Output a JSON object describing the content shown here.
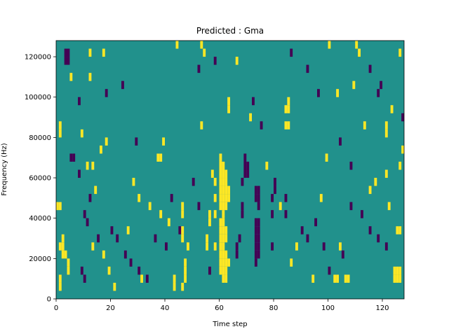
{
  "chart_data": {
    "type": "heatmap",
    "title": "Predicted : Gma",
    "xlabel": "Time step",
    "ylabel": "Frequency (Hz)",
    "xlim": [
      0,
      128
    ],
    "ylim": [
      0,
      128000
    ],
    "xticks": [
      0,
      20,
      40,
      60,
      80,
      100,
      120
    ],
    "yticks": [
      0,
      20000,
      40000,
      60000,
      80000,
      100000,
      120000
    ],
    "grid": false,
    "colorscale": "viridis",
    "colors": {
      "low": "#440154",
      "mid": "#21918c",
      "high": "#fde725"
    },
    "background_value": 0,
    "cell_width_steps": 1,
    "cell_height_hz": 4000,
    "cells": [
      {
        "x": 60,
        "y": 12000,
        "v": 1
      },
      {
        "x": 60,
        "y": 16000,
        "v": 1
      },
      {
        "x": 60,
        "y": 20000,
        "v": 1
      },
      {
        "x": 60,
        "y": 24000,
        "v": 1
      },
      {
        "x": 60,
        "y": 28000,
        "v": 1
      },
      {
        "x": 60,
        "y": 32000,
        "v": 1
      },
      {
        "x": 60,
        "y": 36000,
        "v": 1
      },
      {
        "x": 60,
        "y": 44000,
        "v": 1
      },
      {
        "x": 60,
        "y": 48000,
        "v": 1
      },
      {
        "x": 60,
        "y": 52000,
        "v": 1
      },
      {
        "x": 60,
        "y": 56000,
        "v": 1
      },
      {
        "x": 60,
        "y": 60000,
        "v": 1
      },
      {
        "x": 60,
        "y": 64000,
        "v": 1
      },
      {
        "x": 60,
        "y": 68000,
        "v": 1
      },
      {
        "x": 61,
        "y": 8000,
        "v": 1
      },
      {
        "x": 61,
        "y": 12000,
        "v": 1
      },
      {
        "x": 61,
        "y": 16000,
        "v": 1
      },
      {
        "x": 61,
        "y": 20000,
        "v": 1
      },
      {
        "x": 61,
        "y": 24000,
        "v": 1
      },
      {
        "x": 61,
        "y": 28000,
        "v": 1
      },
      {
        "x": 61,
        "y": 32000,
        "v": 1
      },
      {
        "x": 61,
        "y": 36000,
        "v": 1
      },
      {
        "x": 61,
        "y": 40000,
        "v": 1
      },
      {
        "x": 61,
        "y": 44000,
        "v": 1
      },
      {
        "x": 61,
        "y": 48000,
        "v": 1
      },
      {
        "x": 61,
        "y": 52000,
        "v": 1
      },
      {
        "x": 61,
        "y": 56000,
        "v": 1
      },
      {
        "x": 61,
        "y": 60000,
        "v": 1
      },
      {
        "x": 61,
        "y": 64000,
        "v": 1
      },
      {
        "x": 62,
        "y": 8000,
        "v": 1
      },
      {
        "x": 62,
        "y": 12000,
        "v": 1
      },
      {
        "x": 62,
        "y": 16000,
        "v": 1
      },
      {
        "x": 62,
        "y": 20000,
        "v": 1
      },
      {
        "x": 62,
        "y": 28000,
        "v": 1
      },
      {
        "x": 62,
        "y": 32000,
        "v": 1
      },
      {
        "x": 62,
        "y": 44000,
        "v": 1
      },
      {
        "x": 62,
        "y": 48000,
        "v": 1
      },
      {
        "x": 62,
        "y": 52000,
        "v": 1
      },
      {
        "x": 62,
        "y": 56000,
        "v": 1
      },
      {
        "x": 62,
        "y": 60000,
        "v": 1
      },
      {
        "x": 58,
        "y": 48000,
        "v": 1
      },
      {
        "x": 58,
        "y": 56000,
        "v": 1
      },
      {
        "x": 58,
        "y": 40000,
        "v": 1
      },
      {
        "x": 58,
        "y": 24000,
        "v": 1
      },
      {
        "x": 57,
        "y": 60000,
        "v": 1
      },
      {
        "x": 63,
        "y": 48000,
        "v": 1
      },
      {
        "x": 63,
        "y": 52000,
        "v": 1
      },
      {
        "x": 63,
        "y": 16000,
        "v": 1
      },
      {
        "x": 69,
        "y": 60000,
        "v": -1
      },
      {
        "x": 69,
        "y": 64000,
        "v": -1
      },
      {
        "x": 70,
        "y": 60000,
        "v": -1
      },
      {
        "x": 70,
        "y": 64000,
        "v": -1
      },
      {
        "x": 69,
        "y": 68000,
        "v": -1
      },
      {
        "x": 68,
        "y": 56000,
        "v": -1
      },
      {
        "x": 68,
        "y": 44000,
        "v": -1
      },
      {
        "x": 68,
        "y": 40000,
        "v": -1
      },
      {
        "x": 67,
        "y": 28000,
        "v": -1
      },
      {
        "x": 66,
        "y": 24000,
        "v": -1
      },
      {
        "x": 66,
        "y": 20000,
        "v": -1
      },
      {
        "x": 73,
        "y": 52000,
        "v": -1
      },
      {
        "x": 73,
        "y": 48000,
        "v": -1
      },
      {
        "x": 73,
        "y": 36000,
        "v": -1
      },
      {
        "x": 73,
        "y": 32000,
        "v": -1
      },
      {
        "x": 73,
        "y": 28000,
        "v": -1
      },
      {
        "x": 73,
        "y": 24000,
        "v": -1
      },
      {
        "x": 73,
        "y": 20000,
        "v": -1
      },
      {
        "x": 73,
        "y": 16000,
        "v": -1
      },
      {
        "x": 74,
        "y": 52000,
        "v": -1
      },
      {
        "x": 74,
        "y": 48000,
        "v": -1
      },
      {
        "x": 74,
        "y": 44000,
        "v": -1
      },
      {
        "x": 74,
        "y": 36000,
        "v": -1
      },
      {
        "x": 74,
        "y": 32000,
        "v": -1
      },
      {
        "x": 74,
        "y": 28000,
        "v": -1
      },
      {
        "x": 74,
        "y": 24000,
        "v": -1
      },
      {
        "x": 74,
        "y": 20000,
        "v": -1
      },
      {
        "x": 79,
        "y": 48000,
        "v": -1
      },
      {
        "x": 80,
        "y": 52000,
        "v": -1
      },
      {
        "x": 80,
        "y": 56000,
        "v": -1
      },
      {
        "x": 79,
        "y": 40000,
        "v": -1
      },
      {
        "x": 79,
        "y": 24000,
        "v": -1
      },
      {
        "x": 84,
        "y": 40000,
        "v": -1
      },
      {
        "x": 84,
        "y": 48000,
        "v": -1
      },
      {
        "x": 72,
        "y": 96000,
        "v": -1
      },
      {
        "x": 75,
        "y": 84000,
        "v": -1
      },
      {
        "x": 3,
        "y": 120000,
        "v": -1
      },
      {
        "x": 4,
        "y": 120000,
        "v": -1
      },
      {
        "x": 4,
        "y": 116000,
        "v": -1
      },
      {
        "x": 3,
        "y": 116000,
        "v": -1
      },
      {
        "x": 9,
        "y": 12000,
        "v": -1
      },
      {
        "x": 10,
        "y": 8000,
        "v": -1
      },
      {
        "x": 118,
        "y": 100000,
        "v": -1
      },
      {
        "x": 119,
        "y": 104000,
        "v": -1
      },
      {
        "x": 127,
        "y": 88000,
        "v": -1
      },
      {
        "x": 5,
        "y": 68000,
        "v": -1
      },
      {
        "x": 6,
        "y": 68000,
        "v": -1
      },
      {
        "x": 45,
        "y": 32000,
        "v": -1
      },
      {
        "x": 1,
        "y": 24000,
        "v": 1
      },
      {
        "x": 2,
        "y": 28000,
        "v": 1
      },
      {
        "x": 2,
        "y": 24000,
        "v": 1
      },
      {
        "x": 2,
        "y": 20000,
        "v": 1
      },
      {
        "x": 3,
        "y": 20000,
        "v": 1
      },
      {
        "x": 4,
        "y": 16000,
        "v": 1
      },
      {
        "x": 4,
        "y": 12000,
        "v": 1
      },
      {
        "x": 1,
        "y": 8000,
        "v": 1
      },
      {
        "x": 1,
        "y": 4000,
        "v": 1
      },
      {
        "x": 1,
        "y": 80000,
        "v": 1
      },
      {
        "x": 1,
        "y": 84000,
        "v": 1
      },
      {
        "x": 1,
        "y": 44000,
        "v": 1
      },
      {
        "x": 0,
        "y": 44000,
        "v": 1
      },
      {
        "x": 5,
        "y": 108000,
        "v": 1
      },
      {
        "x": 46,
        "y": 28000,
        "v": 1
      },
      {
        "x": 46,
        "y": 32000,
        "v": 1
      },
      {
        "x": 46,
        "y": 40000,
        "v": 1
      },
      {
        "x": 46,
        "y": 44000,
        "v": 1
      },
      {
        "x": 47,
        "y": 16000,
        "v": 1
      },
      {
        "x": 47,
        "y": 12000,
        "v": 1
      },
      {
        "x": 47,
        "y": 8000,
        "v": 1
      },
      {
        "x": 46,
        "y": 4000,
        "v": 1
      },
      {
        "x": 84,
        "y": 92000,
        "v": 1
      },
      {
        "x": 85,
        "y": 92000,
        "v": 1
      },
      {
        "x": 85,
        "y": 96000,
        "v": 1
      },
      {
        "x": 84,
        "y": 84000,
        "v": 1
      },
      {
        "x": 85,
        "y": 84000,
        "v": 1
      },
      {
        "x": 102,
        "y": 8000,
        "v": 1
      },
      {
        "x": 103,
        "y": 8000,
        "v": 1
      },
      {
        "x": 106,
        "y": 8000,
        "v": 1
      },
      {
        "x": 107,
        "y": 8000,
        "v": 1
      },
      {
        "x": 124,
        "y": 8000,
        "v": 1
      },
      {
        "x": 125,
        "y": 8000,
        "v": 1
      },
      {
        "x": 126,
        "y": 8000,
        "v": 1
      },
      {
        "x": 124,
        "y": 12000,
        "v": 1
      },
      {
        "x": 125,
        "y": 12000,
        "v": 1
      },
      {
        "x": 126,
        "y": 12000,
        "v": 1
      },
      {
        "x": 125,
        "y": 32000,
        "v": 1
      },
      {
        "x": 126,
        "y": 32000,
        "v": 1
      },
      {
        "x": 121,
        "y": 84000,
        "v": 1
      },
      {
        "x": 121,
        "y": 80000,
        "v": 1
      },
      {
        "x": 126,
        "y": 64000,
        "v": 1
      },
      {
        "x": 126,
        "y": 120000,
        "v": 1
      },
      {
        "x": 121,
        "y": 60000,
        "v": 1
      },
      {
        "x": 37,
        "y": 68000,
        "v": 1
      },
      {
        "x": 38,
        "y": 68000,
        "v": 1
      },
      {
        "x": 43,
        "y": 8000,
        "v": 1
      },
      {
        "x": 43,
        "y": 4000,
        "v": 1
      },
      {
        "x": 55,
        "y": 24000,
        "v": 1
      },
      {
        "x": 55,
        "y": 28000,
        "v": 1
      },
      {
        "x": 56,
        "y": 36000,
        "v": 1
      },
      {
        "x": 56,
        "y": 40000,
        "v": 1
      },
      {
        "x": 63,
        "y": 96000,
        "v": 1
      },
      {
        "x": 63,
        "y": 92000,
        "v": 1
      },
      {
        "x": 48,
        "y": 24000,
        "v": 1
      },
      {
        "x": 30,
        "y": 48000,
        "v": 1
      },
      {
        "x": 31,
        "y": 8000,
        "v": 1
      },
      {
        "x": 14,
        "y": 52000,
        "v": 1
      },
      {
        "x": 13,
        "y": 64000,
        "v": 1
      },
      {
        "x": 16,
        "y": 72000,
        "v": 1
      },
      {
        "x": 18,
        "y": 76000,
        "v": 1
      },
      {
        "x": 12,
        "y": 120000,
        "v": 1
      },
      {
        "x": 17,
        "y": 120000,
        "v": 1
      },
      {
        "x": 12,
        "y": 108000,
        "v": 1
      },
      {
        "x": 53,
        "y": 84000,
        "v": 1
      },
      {
        "x": 100,
        "y": 124000,
        "v": 1
      },
      {
        "x": 110,
        "y": 124000,
        "v": 1
      },
      {
        "x": 111,
        "y": 120000,
        "v": 1
      },
      {
        "x": 38,
        "y": 40000,
        "v": 1
      },
      {
        "x": 41,
        "y": 36000,
        "v": 1
      },
      {
        "x": 88,
        "y": 24000,
        "v": 1
      },
      {
        "x": 104,
        "y": 24000,
        "v": 1
      },
      {
        "x": 97,
        "y": 48000,
        "v": 1
      },
      {
        "x": 115,
        "y": 52000,
        "v": 1
      },
      {
        "x": 122,
        "y": 44000,
        "v": 1
      },
      {
        "x": 10,
        "y": 40000,
        "v": -1
      },
      {
        "x": 11,
        "y": 36000,
        "v": -1
      },
      {
        "x": 15,
        "y": 28000,
        "v": -1
      },
      {
        "x": 20,
        "y": 32000,
        "v": -1
      },
      {
        "x": 22,
        "y": 28000,
        "v": -1
      },
      {
        "x": 25,
        "y": 20000,
        "v": -1
      },
      {
        "x": 27,
        "y": 16000,
        "v": -1
      },
      {
        "x": 30,
        "y": 12000,
        "v": -1
      },
      {
        "x": 33,
        "y": 8000,
        "v": -1
      },
      {
        "x": 36,
        "y": 28000,
        "v": -1
      },
      {
        "x": 40,
        "y": 24000,
        "v": -1
      },
      {
        "x": 42,
        "y": 48000,
        "v": -1
      },
      {
        "x": 50,
        "y": 56000,
        "v": -1
      },
      {
        "x": 52,
        "y": 44000,
        "v": -1
      },
      {
        "x": 56,
        "y": 12000,
        "v": -1
      },
      {
        "x": 90,
        "y": 32000,
        "v": -1
      },
      {
        "x": 92,
        "y": 28000,
        "v": -1
      },
      {
        "x": 95,
        "y": 36000,
        "v": -1
      },
      {
        "x": 98,
        "y": 24000,
        "v": -1
      },
      {
        "x": 100,
        "y": 12000,
        "v": -1
      },
      {
        "x": 105,
        "y": 20000,
        "v": -1
      },
      {
        "x": 108,
        "y": 44000,
        "v": -1
      },
      {
        "x": 112,
        "y": 40000,
        "v": -1
      },
      {
        "x": 115,
        "y": 32000,
        "v": -1
      },
      {
        "x": 118,
        "y": 28000,
        "v": -1
      },
      {
        "x": 121,
        "y": 24000,
        "v": -1
      },
      {
        "x": 86,
        "y": 120000,
        "v": -1
      },
      {
        "x": 92,
        "y": 112000,
        "v": -1
      },
      {
        "x": 96,
        "y": 100000,
        "v": -1
      },
      {
        "x": 104,
        "y": 76000,
        "v": -1
      },
      {
        "x": 108,
        "y": 64000,
        "v": -1
      },
      {
        "x": 115,
        "y": 112000,
        "v": -1
      },
      {
        "x": 29,
        "y": 76000,
        "v": -1
      },
      {
        "x": 24,
        "y": 104000,
        "v": -1
      },
      {
        "x": 18,
        "y": 100000,
        "v": -1
      },
      {
        "x": 8,
        "y": 96000,
        "v": -1
      },
      {
        "x": 8,
        "y": 60000,
        "v": -1
      },
      {
        "x": 12,
        "y": 48000,
        "v": -1
      },
      {
        "x": 52,
        "y": 112000,
        "v": -1
      },
      {
        "x": 58,
        "y": 116000,
        "v": -1
      },
      {
        "x": 9,
        "y": 80000,
        "v": 1
      },
      {
        "x": 11,
        "y": 64000,
        "v": 1
      },
      {
        "x": 13,
        "y": 24000,
        "v": 1
      },
      {
        "x": 17,
        "y": 20000,
        "v": 1
      },
      {
        "x": 19,
        "y": 12000,
        "v": 1
      },
      {
        "x": 21,
        "y": 4000,
        "v": 1
      },
      {
        "x": 26,
        "y": 32000,
        "v": 1
      },
      {
        "x": 28,
        "y": 56000,
        "v": 1
      },
      {
        "x": 34,
        "y": 44000,
        "v": 1
      },
      {
        "x": 39,
        "y": 76000,
        "v": 1
      },
      {
        "x": 44,
        "y": 124000,
        "v": 1
      },
      {
        "x": 53,
        "y": 124000,
        "v": 1
      },
      {
        "x": 54,
        "y": 120000,
        "v": 1
      },
      {
        "x": 66,
        "y": 116000,
        "v": 1
      },
      {
        "x": 71,
        "y": 88000,
        "v": 1
      },
      {
        "x": 77,
        "y": 64000,
        "v": 1
      },
      {
        "x": 82,
        "y": 44000,
        "v": 1
      },
      {
        "x": 86,
        "y": 16000,
        "v": 1
      },
      {
        "x": 94,
        "y": 8000,
        "v": 1
      },
      {
        "x": 99,
        "y": 68000,
        "v": 1
      },
      {
        "x": 103,
        "y": 100000,
        "v": 1
      },
      {
        "x": 109,
        "y": 104000,
        "v": 1
      },
      {
        "x": 113,
        "y": 84000,
        "v": 1
      },
      {
        "x": 117,
        "y": 56000,
        "v": 1
      },
      {
        "x": 123,
        "y": 92000,
        "v": 1
      },
      {
        "x": 127,
        "y": 72000,
        "v": 1
      }
    ]
  }
}
